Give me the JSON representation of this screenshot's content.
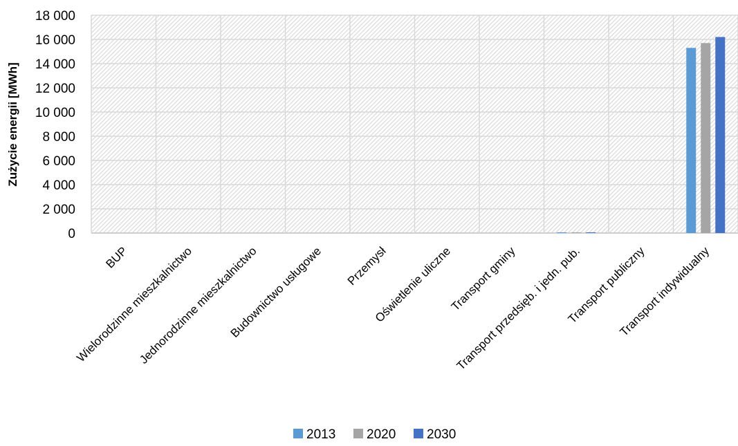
{
  "chart_data": {
    "type": "bar",
    "title": "",
    "xlabel": "",
    "ylabel": "Zużycie energii [MWh]",
    "ylim": [
      0,
      18000
    ],
    "ytick_values": [
      0,
      2000,
      4000,
      6000,
      8000,
      10000,
      12000,
      14000,
      16000,
      18000
    ],
    "ytick_labels": [
      "0",
      "2 000",
      "4 000",
      "6 000",
      "8 000",
      "10 000",
      "12 000",
      "14 000",
      "16 000",
      "18 000"
    ],
    "grid": true,
    "legend": "bottom",
    "categories": [
      "BUP",
      "Wielorodzinne mieszkalnictwo",
      "Jednorodzinne mieszkalnictwo",
      "Budownictwo usługowe",
      "Przemysł",
      "Oświetlenie uliczne",
      "Transport gminy",
      "Transport przedsięb. i jedn. pub.",
      "Transport publiczny",
      "Transport indywidualny"
    ],
    "series": [
      {
        "name": "2013",
        "color": "#5b9bd5",
        "values": [
          0,
          0,
          0,
          0,
          0,
          0,
          0,
          60,
          0,
          15300
        ]
      },
      {
        "name": "2020",
        "color": "#a5a5a5",
        "values": [
          0,
          0,
          0,
          0,
          0,
          0,
          0,
          60,
          0,
          15700
        ]
      },
      {
        "name": "2030",
        "color": "#4472c4",
        "values": [
          0,
          0,
          0,
          0,
          0,
          0,
          0,
          60,
          0,
          16200
        ]
      }
    ]
  }
}
